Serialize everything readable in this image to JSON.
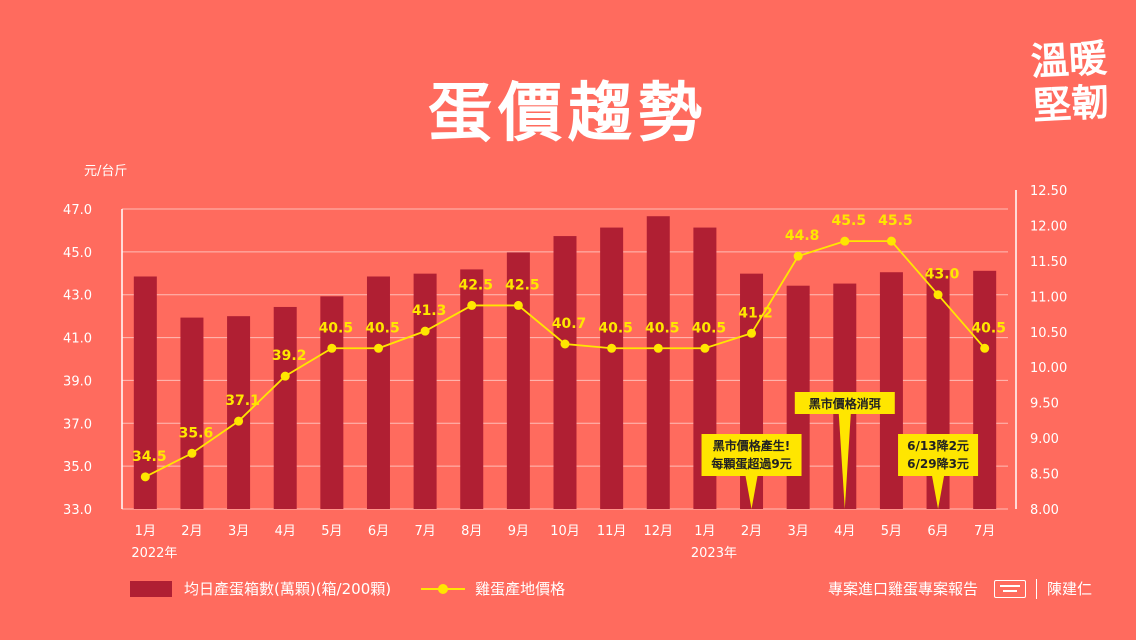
{
  "title": "蛋價趨勢",
  "badge": {
    "line1": "溫暖",
    "line2": "堅韌"
  },
  "legend": {
    "bars": "均日產蛋箱數(萬顆)(箱/200顆)",
    "line": "雞蛋產地價格"
  },
  "footer": {
    "report": "專案進口雞蛋專案報告",
    "name": "陳建仁"
  },
  "chart_data": {
    "type": "bar",
    "categories": [
      "1月",
      "2月",
      "3月",
      "4月",
      "5月",
      "6月",
      "7月",
      "8月",
      "9月",
      "10月",
      "11月",
      "12月",
      "1月",
      "2月",
      "3月",
      "4月",
      "5月",
      "6月",
      "7月"
    ],
    "year_labels": [
      {
        "index": 0,
        "text": "2022年"
      },
      {
        "index": 12,
        "text": "2023年"
      }
    ],
    "left_axis": {
      "label": "元/台斤",
      "ticks": [
        "33.0",
        "35.0",
        "37.0",
        "39.0",
        "41.0",
        "43.0",
        "45.0",
        "47.0"
      ],
      "ylim": [
        33,
        47
      ]
    },
    "right_axis": {
      "ticks": [
        "8.00",
        "8.50",
        "9.00",
        "9.50",
        "10.00",
        "10.50",
        "11.00",
        "11.50",
        "12.00",
        "12.50"
      ],
      "ylim": [
        8.0,
        12.5
      ]
    },
    "series": [
      {
        "type": "bar",
        "axis": "right",
        "color": "#b01f33",
        "values": [
          11.28,
          10.7,
          10.72,
          10.85,
          11.0,
          11.28,
          11.32,
          11.38,
          11.62,
          11.85,
          11.97,
          12.13,
          11.97,
          11.32,
          11.15,
          11.18,
          11.34,
          11.37,
          11.36
        ]
      },
      {
        "type": "line",
        "axis": "left",
        "color": "#ffe600",
        "values": [
          34.5,
          35.6,
          37.1,
          39.2,
          40.5,
          40.5,
          41.3,
          42.5,
          42.5,
          40.7,
          40.5,
          40.5,
          40.5,
          41.2,
          44.8,
          45.5,
          45.5,
          43.0,
          40.5
        ],
        "labels": [
          "34.5",
          "35.6",
          "37.1",
          "39.2",
          "40.5",
          "40.5",
          "41.3",
          "42.5",
          "42.5",
          "40.7",
          "40.5",
          "40.5",
          "40.5",
          "41.2",
          "44.8",
          "45.5",
          "45.5",
          "43.0",
          "40.5"
        ]
      }
    ],
    "callouts": [
      {
        "index": 13,
        "lines": [
          "黑市價格產生!",
          "每顆蛋超過9元"
        ]
      },
      {
        "index": 15,
        "lines": [
          "黑市價格消弭"
        ]
      },
      {
        "index": 17,
        "lines": [
          "6/13降2元",
          "6/29降3元"
        ]
      }
    ]
  }
}
